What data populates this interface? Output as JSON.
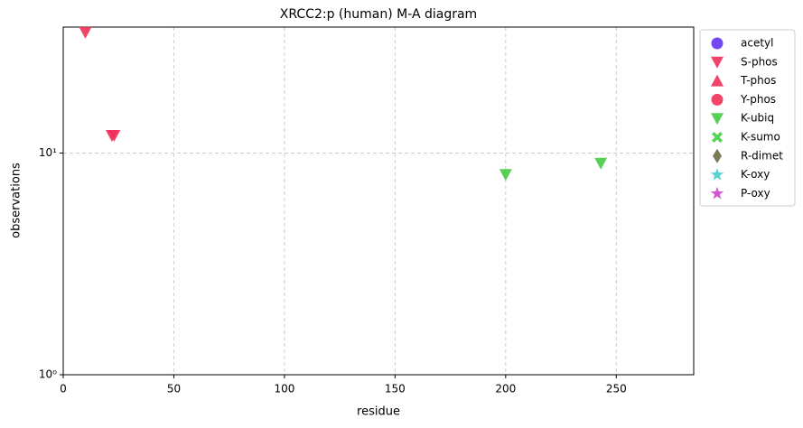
{
  "chart_data": {
    "type": "scatter",
    "title": "XRCC2:p (human) M-A diagram",
    "x_label": "residue",
    "y_label": "observations",
    "xlim": [
      0,
      285
    ],
    "xticks": [
      0,
      50,
      100,
      150,
      200,
      250
    ],
    "ylim": [
      1,
      37
    ],
    "yscale": "log",
    "yticks": [
      {
        "value": 1,
        "label": "10⁰"
      },
      {
        "value": 10,
        "label": "10¹"
      }
    ],
    "grid": true,
    "legend": "outside-upper-right",
    "series": [
      {
        "name": "acetyl",
        "color": "#6633ee",
        "marker": "circle",
        "x": [],
        "values": []
      },
      {
        "name": "S-phos",
        "color": "#f0305a",
        "marker": "triangle-down",
        "x": [
          10,
          22,
          23
        ],
        "values": [
          35,
          12,
          12
        ]
      },
      {
        "name": "T-phos",
        "color": "#f0305a",
        "marker": "triangle-up",
        "x": [],
        "values": []
      },
      {
        "name": "Y-phos",
        "color": "#f0305a",
        "marker": "circle",
        "x": [],
        "values": []
      },
      {
        "name": "K-ubiq",
        "color": "#44cc44",
        "marker": "triangle-down",
        "x": [
          200,
          243
        ],
        "values": [
          8,
          9
        ]
      },
      {
        "name": "K-sumo",
        "color": "#44cc44",
        "marker": "x",
        "x": [],
        "values": []
      },
      {
        "name": "R-dimet",
        "color": "#6b6b45",
        "marker": "diamond",
        "x": [],
        "values": []
      },
      {
        "name": "K-oxy",
        "color": "#44cccc",
        "marker": "star",
        "x": [],
        "values": []
      },
      {
        "name": "P-oxy",
        "color": "#cc44cc",
        "marker": "star",
        "x": [],
        "values": []
      }
    ]
  }
}
